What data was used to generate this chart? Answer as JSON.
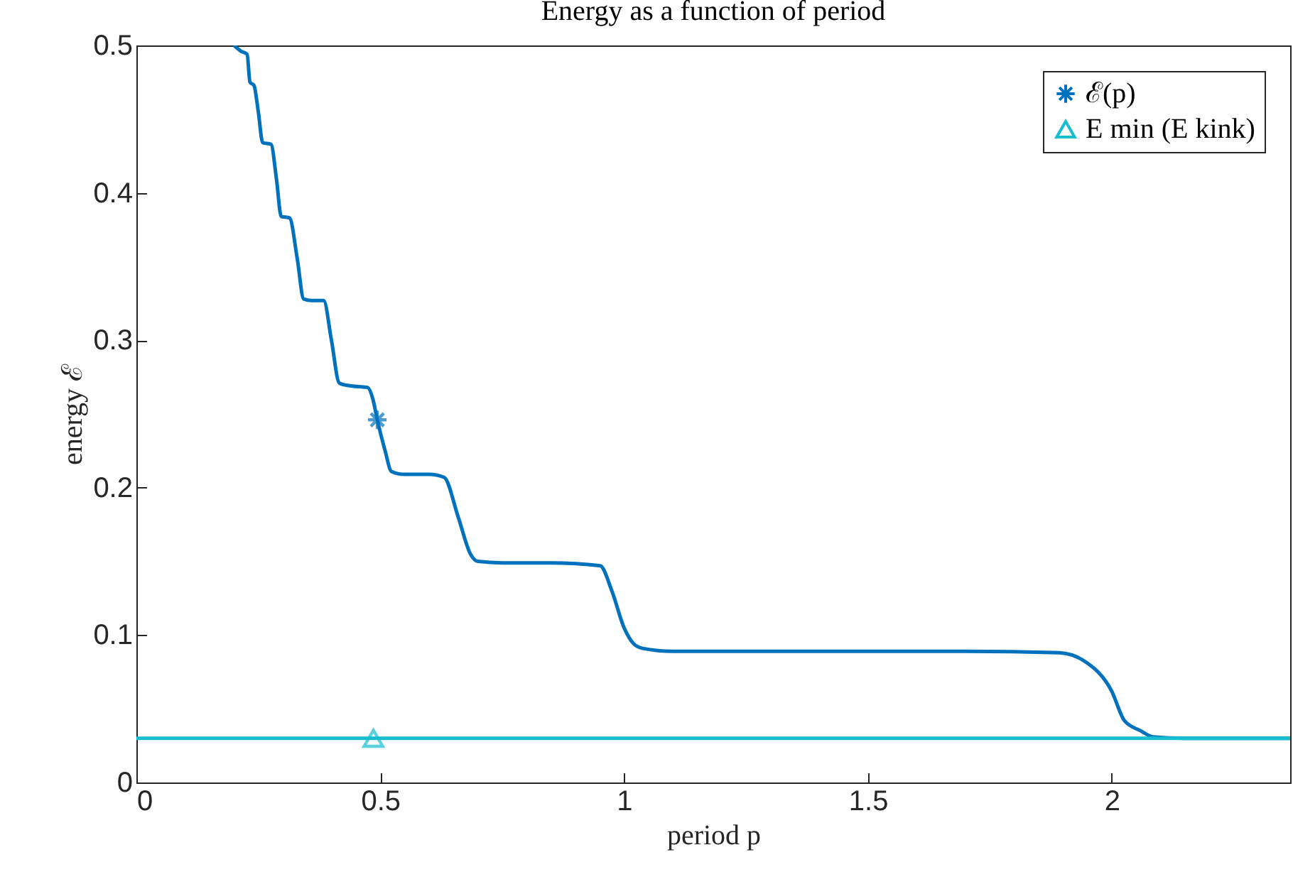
{
  "chart_data": {
    "type": "line",
    "title": "Energy as a function of period",
    "xlabel": "period p",
    "ylabel": "energy ℰ",
    "xlim": [
      0,
      2.366
    ],
    "xticks": [
      0,
      0.5,
      1,
      1.5,
      2
    ],
    "ylim": [
      0,
      0.5
    ],
    "yticks": [
      0,
      0.1,
      0.2,
      0.3,
      0.4,
      0.5
    ],
    "grid": false,
    "legend": "top right",
    "line_style": "solid",
    "series": [
      {
        "name": "ℰ(p)",
        "color": "#0072bd",
        "x": [
          0.2,
          0.215,
          0.227,
          0.233,
          0.241,
          0.25,
          0.259,
          0.276,
          0.287,
          0.297,
          0.314,
          0.33,
          0.343,
          0.36,
          0.384,
          0.4,
          0.416,
          0.44,
          0.474,
          0.485,
          0.494,
          0.51,
          0.523,
          0.55,
          0.6,
          0.631,
          0.66,
          0.685,
          0.7,
          0.75,
          0.85,
          0.951,
          0.975,
          1.0,
          1.02,
          1.038,
          1.1,
          1.3,
          1.5,
          1.7,
          1.892,
          1.95,
          2.0,
          2.026,
          2.06,
          2.084,
          2.15,
          2.366
        ],
        "values": [
          0.5,
          0.496,
          0.494,
          0.475,
          0.473,
          0.455,
          0.434,
          0.433,
          0.41,
          0.384,
          0.383,
          0.355,
          0.328,
          0.327,
          0.327,
          0.3,
          0.271,
          0.269,
          0.268,
          0.26,
          0.246,
          0.225,
          0.211,
          0.209,
          0.209,
          0.207,
          0.18,
          0.155,
          0.15,
          0.149,
          0.149,
          0.147,
          0.13,
          0.105,
          0.094,
          0.091,
          0.089,
          0.089,
          0.089,
          0.089,
          0.088,
          0.081,
          0.062,
          0.042,
          0.035,
          0.031,
          0.03,
          0.03
        ]
      },
      {
        "name": "E min (E kink)",
        "color": "#17becf",
        "x": [
          0,
          2.366
        ],
        "values": [
          0.03,
          0.03
        ]
      },
      {
        "type": "scatter",
        "color": "#0072bd",
        "marker": "cross",
        "x": [
          0.494
        ],
        "values": [
          0.246
        ]
      },
      {
        "type": "scatter",
        "color": "#17becf",
        "marker": "triangle",
        "x": [
          0.486
        ],
        "values": [
          0.03
        ]
      }
    ]
  }
}
